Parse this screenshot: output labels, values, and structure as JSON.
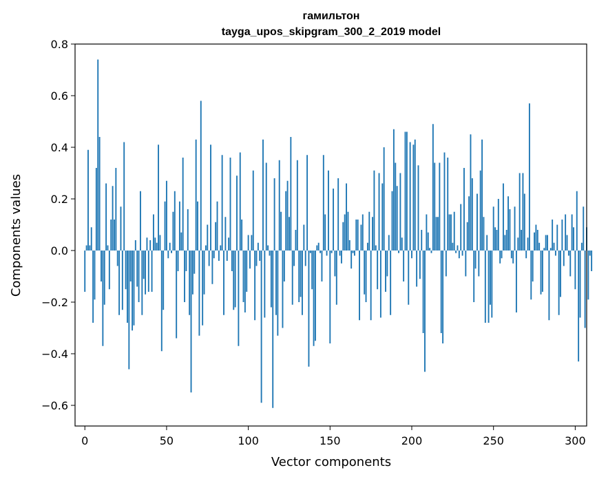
{
  "chart_data": {
    "type": "bar",
    "title": "гамильтон",
    "subtitle": "tayga_upos_skipgram_300_2_2019 model",
    "xlabel": "Vector components",
    "ylabel": "Components values",
    "xlim": [
      -6,
      307
    ],
    "ylim": [
      -0.68,
      0.8
    ],
    "xticks": [
      0,
      50,
      100,
      150,
      200,
      250,
      300
    ],
    "xtick_labels": [
      "0",
      "50",
      "100",
      "150",
      "200",
      "250",
      "300"
    ],
    "yticks": [
      -0.6,
      -0.4,
      -0.2,
      0.0,
      0.2,
      0.4,
      0.6,
      0.8
    ],
    "ytick_labels": [
      "−0.6",
      "−0.4",
      "−0.2",
      "0.0",
      "0.2",
      "0.4",
      "0.6",
      "0.8"
    ],
    "bar_color": "#1f77b4",
    "grid": false,
    "series": [
      {
        "values": [
          -0.16,
          0.02,
          0.39,
          0.02,
          0.09,
          -0.28,
          -0.19,
          0.32,
          0.74,
          0.44,
          -0.12,
          -0.37,
          -0.21,
          0.26,
          0.02,
          -0.15,
          0.12,
          0.25,
          0.12,
          0.32,
          -0.06,
          -0.25,
          0.17,
          -0.23,
          0.42,
          -0.15,
          -0.28,
          -0.46,
          -0.12,
          -0.31,
          -0.29,
          0.04,
          -0.14,
          -0.2,
          0.23,
          -0.25,
          -0.11,
          -0.17,
          0.05,
          -0.16,
          0.04,
          -0.16,
          0.14,
          0.05,
          0.03,
          0.41,
          0.06,
          -0.39,
          -0.23,
          0.19,
          0.27,
          -0.03,
          0.03,
          -0.01,
          0.15,
          0.23,
          -0.34,
          -0.08,
          0.19,
          0.07,
          0.36,
          -0.2,
          -0.08,
          0.16,
          -0.25,
          -0.55,
          -0.17,
          -0.09,
          0.43,
          0.19,
          -0.33,
          0.58,
          -0.29,
          -0.17,
          0.02,
          0.1,
          -0.06,
          0.41,
          -0.13,
          -0.03,
          0.11,
          0.19,
          -0.04,
          0.02,
          0.37,
          -0.25,
          0.13,
          -0.04,
          0.05,
          0.36,
          -0.08,
          -0.23,
          -0.22,
          0.29,
          -0.37,
          0.38,
          0.12,
          -0.2,
          -0.24,
          -0.16,
          0.06,
          -0.07,
          0.06,
          0.31,
          -0.27,
          -0.06,
          0.03,
          -0.04,
          -0.59,
          0.43,
          -0.26,
          0.34,
          0.02,
          -0.02,
          -0.22,
          -0.61,
          0.28,
          -0.25,
          -0.33,
          0.35,
          0.15,
          -0.3,
          -0.12,
          0.23,
          0.27,
          0.13,
          0.44,
          -0.21,
          -0.06,
          0.08,
          0.35,
          -0.2,
          -0.18,
          -0.25,
          0.1,
          -0.06,
          0.37,
          -0.45,
          -0.01,
          -0.15,
          -0.37,
          -0.35,
          0.02,
          0.03,
          -0.01,
          -0.12,
          0.37,
          0.14,
          -0.02,
          0.31,
          -0.36,
          -0.01,
          0.24,
          -0.1,
          -0.21,
          0.28,
          -0.02,
          -0.05,
          0.11,
          0.14,
          0.26,
          0.15,
          0.04,
          -0.07,
          -0.01,
          -0.02,
          0.12,
          0.12,
          -0.27,
          0.1,
          0.14,
          -0.17,
          -0.2,
          0.03,
          0.15,
          -0.27,
          0.13,
          0.31,
          0.02,
          -0.15,
          0.3,
          -0.26,
          0.26,
          0.4,
          -0.16,
          -0.1,
          0.06,
          -0.25,
          0.23,
          0.47,
          0.34,
          0.25,
          -0.01,
          0.3,
          0.05,
          -0.12,
          0.46,
          0.46,
          -0.21,
          0.42,
          -0.03,
          0.41,
          0.43,
          -0.14,
          0.33,
          -0.11,
          0.08,
          -0.32,
          -0.47,
          0.14,
          0.07,
          0.01,
          -0.01,
          0.49,
          0.34,
          0.13,
          0.13,
          0.34,
          -0.32,
          -0.36,
          0.38,
          -0.1,
          0.36,
          0.14,
          0.14,
          0.03,
          0.15,
          -0.01,
          0.02,
          -0.03,
          0.18,
          -0.02,
          0.32,
          -0.1,
          0.11,
          0.21,
          0.45,
          0.28,
          -0.2,
          -0.07,
          0.22,
          -0.1,
          0.31,
          0.43,
          0.13,
          -0.28,
          0.06,
          -0.28,
          -0.21,
          -0.26,
          0.17,
          0.09,
          0.08,
          0.2,
          -0.05,
          -0.03,
          0.26,
          0.06,
          0.08,
          0.21,
          0.16,
          -0.03,
          -0.05,
          0.17,
          -0.24,
          0.05,
          0.3,
          0.08,
          0.3,
          0.22,
          -0.03,
          0.05,
          0.57,
          -0.19,
          -0.12,
          0.07,
          0.1,
          0.08,
          0.03,
          -0.17,
          -0.16,
          0.01,
          0.06,
          0.06,
          -0.27,
          0.01,
          0.12,
          0.03,
          -0.02,
          0.1,
          -0.25,
          -0.18,
          0.12,
          -0.06,
          0.14,
          0.06,
          -0.02,
          -0.1,
          0.14,
          0.09,
          -0.15,
          0.23,
          -0.43,
          -0.26,
          0.03,
          0.17,
          -0.3,
          0.09,
          -0.19,
          -0.02,
          -0.08
        ]
      }
    ]
  }
}
